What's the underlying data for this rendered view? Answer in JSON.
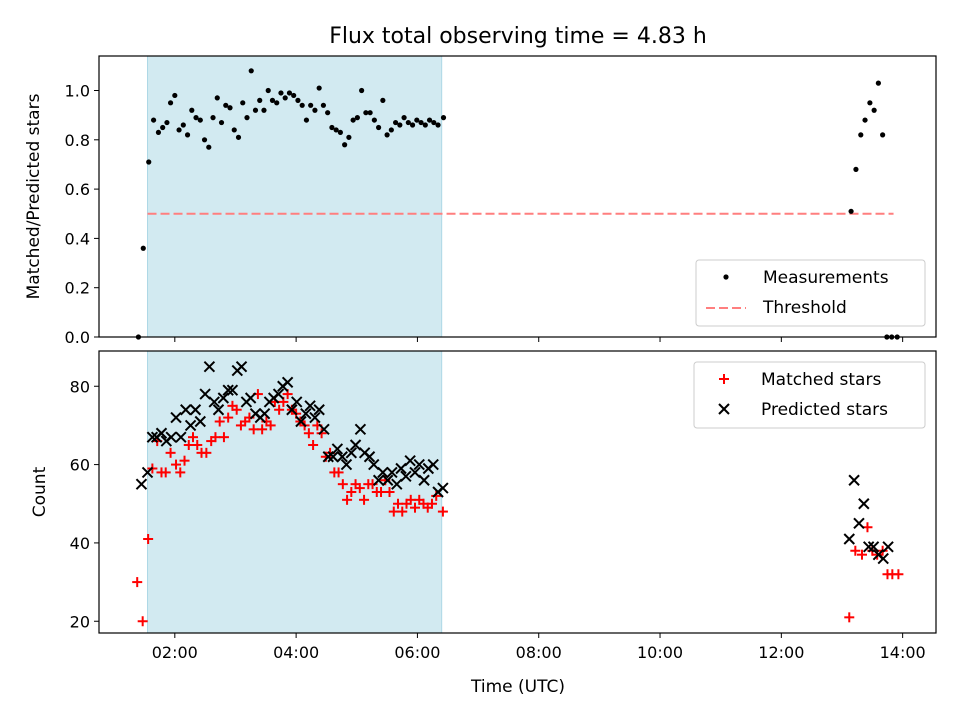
{
  "chart_data": {
    "title": "Flux total observing time = 4.83 h",
    "xlabel": "Time (UTC)",
    "x_ticks": [
      "02:00",
      "04:00",
      "06:00",
      "08:00",
      "10:00",
      "12:00",
      "14:00"
    ],
    "x_tick_hours": [
      2,
      4,
      6,
      8,
      10,
      12,
      14
    ],
    "xlim_hours": [
      0.75,
      14.55
    ],
    "shaded_region_hours": [
      1.55,
      6.4
    ],
    "colors": {
      "shade": "#add8e6",
      "threshold": "#ff7f7f",
      "matched": "#ff0000",
      "predicted": "#000000",
      "measurement": "#000000"
    },
    "panels": [
      {
        "type": "scatter",
        "ylabel": "Matched/Predicted stars",
        "ylim": [
          0.0,
          1.14
        ],
        "y_ticks": [
          0.0,
          0.2,
          0.4,
          0.6,
          0.8,
          1.0
        ],
        "threshold": {
          "name": "Threshold",
          "y": 0.5,
          "x_range_hours": [
            1.55,
            13.85
          ]
        },
        "legend": {
          "position": "bottom-right",
          "entries": [
            "Measurements",
            "Threshold"
          ]
        },
        "series": [
          {
            "name": "Measurements",
            "marker": "dot",
            "x": [
              1.4,
              1.48,
              1.57,
              1.65,
              1.73,
              1.8,
              1.87,
              1.93,
              2.0,
              2.07,
              2.14,
              2.21,
              2.28,
              2.35,
              2.42,
              2.49,
              2.56,
              2.63,
              2.7,
              2.77,
              2.84,
              2.91,
              2.98,
              3.05,
              3.12,
              3.19,
              3.26,
              3.33,
              3.4,
              3.47,
              3.54,
              3.61,
              3.68,
              3.75,
              3.82,
              3.89,
              3.96,
              4.03,
              4.1,
              4.17,
              4.24,
              4.31,
              4.38,
              4.45,
              4.52,
              4.59,
              4.66,
              4.73,
              4.8,
              4.87,
              4.94,
              5.01,
              5.08,
              5.15,
              5.22,
              5.29,
              5.36,
              5.43,
              5.5,
              5.57,
              5.64,
              5.71,
              5.78,
              5.85,
              5.92,
              5.99,
              6.06,
              6.13,
              6.2,
              6.27,
              6.34,
              6.43,
              13.15,
              13.23,
              13.31,
              13.38,
              13.46,
              13.53,
              13.6,
              13.67,
              13.74,
              13.82,
              13.91
            ],
            "y": [
              0.0,
              0.36,
              0.71,
              0.88,
              0.83,
              0.85,
              0.87,
              0.95,
              0.98,
              0.84,
              0.86,
              0.82,
              0.92,
              0.89,
              0.88,
              0.8,
              0.77,
              0.89,
              0.97,
              0.87,
              0.94,
              0.93,
              0.84,
              0.81,
              0.95,
              0.89,
              1.08,
              0.92,
              0.96,
              0.92,
              1.0,
              0.96,
              0.95,
              0.99,
              0.97,
              0.99,
              0.98,
              0.96,
              0.94,
              0.88,
              0.94,
              0.92,
              1.01,
              0.94,
              0.91,
              0.85,
              0.84,
              0.83,
              0.78,
              0.81,
              0.88,
              0.89,
              1.0,
              0.91,
              0.91,
              0.88,
              0.85,
              0.96,
              0.82,
              0.84,
              0.87,
              0.86,
              0.89,
              0.87,
              0.86,
              0.88,
              0.87,
              0.86,
              0.88,
              0.87,
              0.86,
              0.89,
              0.51,
              0.68,
              0.82,
              0.88,
              0.95,
              0.92,
              1.03,
              0.82,
              0.0,
              0.0,
              0.0
            ]
          }
        ]
      },
      {
        "type": "scatter",
        "ylabel": "Count",
        "ylim": [
          17,
          89
        ],
        "y_ticks": [
          20,
          40,
          60,
          80
        ],
        "legend": {
          "position": "top-right",
          "entries": [
            "Matched stars",
            "Predicted stars"
          ]
        },
        "series": [
          {
            "name": "Matched stars",
            "marker": "plus",
            "x": [
              1.38,
              1.47,
              1.56,
              1.63,
              1.71,
              1.78,
              1.85,
              1.93,
              2.02,
              2.09,
              2.16,
              2.23,
              2.3,
              2.37,
              2.44,
              2.52,
              2.6,
              2.67,
              2.74,
              2.81,
              2.88,
              2.95,
              3.02,
              3.09,
              3.16,
              3.23,
              3.3,
              3.37,
              3.44,
              3.51,
              3.58,
              3.65,
              3.72,
              3.79,
              3.86,
              3.93,
              4.0,
              4.07,
              4.14,
              4.21,
              4.28,
              4.35,
              4.42,
              4.49,
              4.56,
              4.63,
              4.7,
              4.77,
              4.84,
              4.91,
              4.98,
              5.05,
              5.12,
              5.19,
              5.26,
              5.33,
              5.4,
              5.47,
              5.54,
              5.61,
              5.68,
              5.75,
              5.82,
              5.89,
              5.96,
              6.03,
              6.1,
              6.17,
              6.24,
              6.31,
              6.42,
              13.12,
              13.22,
              13.33,
              13.42,
              13.5,
              13.58,
              13.67,
              13.75,
              13.83,
              13.93
            ],
            "y": [
              30,
              20,
              41,
              59,
              66,
              58,
              58,
              63,
              60,
              58,
              61,
              65,
              67,
              65,
              63,
              63,
              66,
              67,
              71,
              67,
              72,
              75,
              74,
              70,
              71,
              72,
              69,
              78,
              69,
              71,
              70,
              76,
              74,
              76,
              78,
              74,
              73,
              71,
              70,
              68,
              65,
              70,
              68,
              62,
              63,
              58,
              58,
              55,
              51,
              53,
              55,
              54,
              51,
              55,
              55,
              53,
              53,
              56,
              53,
              48,
              50,
              48,
              50,
              51,
              49,
              51,
              50,
              49,
              50,
              52,
              48,
              21,
              38,
              37,
              44,
              38,
              37,
              38,
              32,
              32,
              32
            ]
          },
          {
            "name": "Predicted stars",
            "marker": "x",
            "x": [
              1.45,
              1.55,
              1.63,
              1.7,
              1.78,
              1.86,
              1.94,
              2.02,
              2.1,
              2.18,
              2.26,
              2.34,
              2.42,
              2.5,
              2.57,
              2.65,
              2.72,
              2.8,
              2.88,
              2.95,
              3.03,
              3.1,
              3.18,
              3.25,
              3.33,
              3.41,
              3.48,
              3.56,
              3.63,
              3.71,
              3.78,
              3.86,
              3.93,
              4.01,
              4.08,
              4.16,
              4.23,
              4.31,
              4.38,
              4.46,
              4.53,
              4.61,
              4.68,
              4.76,
              4.83,
              4.91,
              4.98,
              5.06,
              5.13,
              5.21,
              5.28,
              5.36,
              5.43,
              5.51,
              5.58,
              5.66,
              5.73,
              5.81,
              5.88,
              5.96,
              6.03,
              6.11,
              6.18,
              6.26,
              6.34,
              6.42,
              13.12,
              13.2,
              13.28,
              13.36,
              13.44,
              13.52,
              13.6,
              13.68,
              13.76
            ],
            "y": [
              55,
              58,
              67,
              67,
              68,
              66,
              67,
              72,
              67,
              74,
              70,
              74,
              71,
              78,
              85,
              76,
              74,
              77,
              79,
              79,
              84,
              85,
              76,
              77,
              73,
              72,
              73,
              76,
              77,
              78,
              80,
              81,
              74,
              76,
              71,
              73,
              75,
              72,
              74,
              69,
              62,
              62,
              64,
              62,
              60,
              63,
              65,
              69,
              63,
              62,
              60,
              56,
              58,
              56,
              58,
              55,
              59,
              57,
              61,
              58,
              60,
              56,
              59,
              60,
              53,
              54,
              41,
              56,
              45,
              50,
              39,
              39,
              37,
              36,
              39
            ]
          }
        ]
      }
    ]
  }
}
